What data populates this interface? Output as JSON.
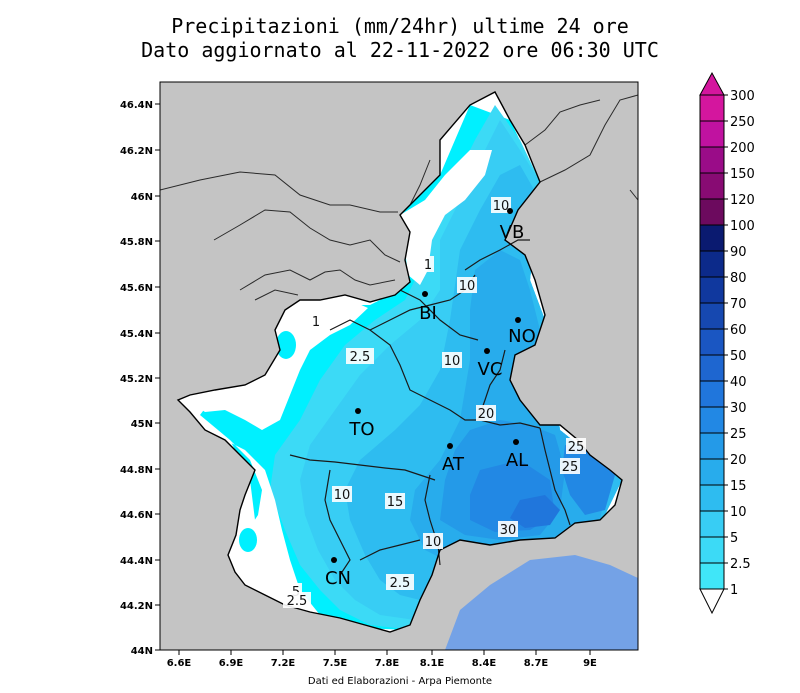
{
  "header": {
    "title_line1": "Precipitazioni (mm/24hr) ultime 24 ore",
    "title_line2": "Dato aggiornato al 22-11-2022 ore 06:30 UTC"
  },
  "axes": {
    "lon_ticks": [
      "6.6E",
      "6.9E",
      "7.2E",
      "7.5E",
      "7.8E",
      "8.1E",
      "8.4E",
      "8.7E",
      "9E"
    ],
    "lat_ticks": [
      "46.4N",
      "46.2N",
      "46N",
      "45.8N",
      "45.6N",
      "45.4N",
      "45.2N",
      "45N",
      "44.8N",
      "44.6N",
      "44.4N",
      "44.2N",
      "44N"
    ]
  },
  "stations": [
    {
      "id": "VB",
      "label": "VB"
    },
    {
      "id": "BI",
      "label": "BI"
    },
    {
      "id": "NO",
      "label": "NO"
    },
    {
      "id": "VC",
      "label": "VC"
    },
    {
      "id": "TO",
      "label": "TO"
    },
    {
      "id": "AT",
      "label": "AT"
    },
    {
      "id": "AL",
      "label": "AL"
    },
    {
      "id": "CN",
      "label": "CN"
    }
  ],
  "contour_labels": [
    "10",
    "1",
    "10",
    "1",
    "2.5",
    "10",
    "20",
    "25",
    "25",
    "10",
    "15",
    "30",
    "10",
    "2.5",
    "5",
    "2.5"
  ],
  "legend": {
    "labels": [
      "300",
      "250",
      "200",
      "150",
      "120",
      "100",
      "90",
      "80",
      "70",
      "60",
      "50",
      "40",
      "30",
      "25",
      "20",
      "15",
      "10",
      "5",
      "2.5",
      "1"
    ],
    "colors": [
      "#d4169e",
      "#c012a0",
      "#9a0c88",
      "#880b73",
      "#6c0a5e",
      "#0a1a70",
      "#0c2a8a",
      "#10389e",
      "#1648b0",
      "#1a56c2",
      "#1e66d0",
      "#2076dc",
      "#2288e4",
      "#249ae8",
      "#28acec",
      "#2ebcf0",
      "#38cdf4",
      "#3cdaf6",
      "#40e6f8",
      "#00f0ff"
    ]
  },
  "footer": {
    "credit": "Dati ed Elaborazioni - Arpa Piemonte"
  }
}
